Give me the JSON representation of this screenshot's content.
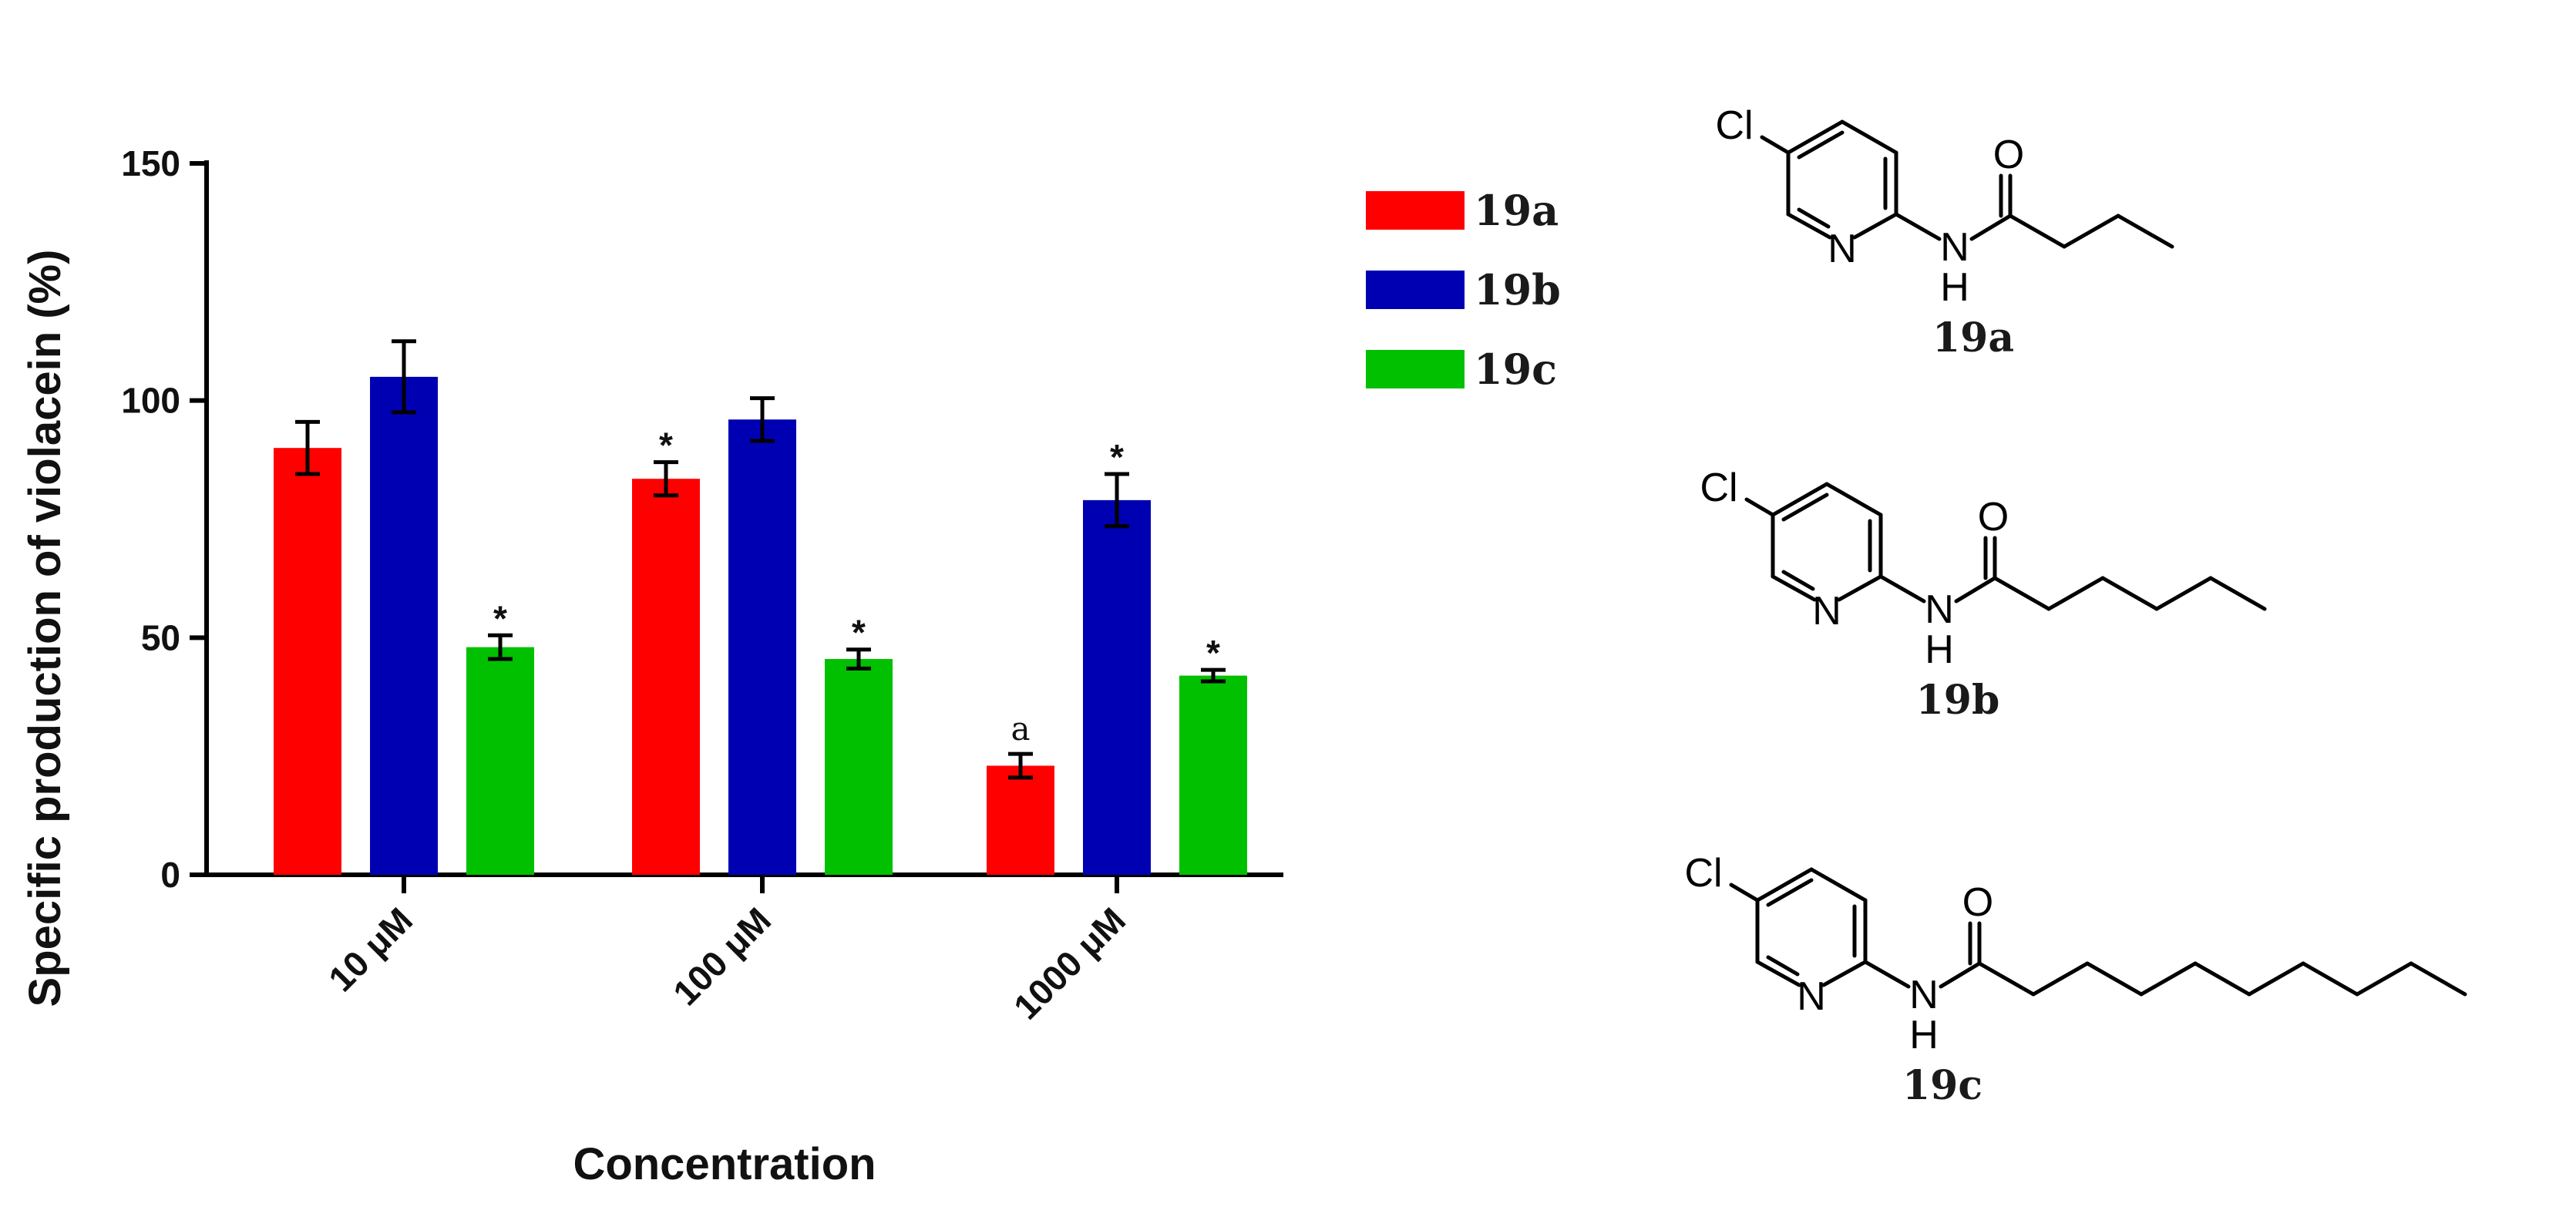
{
  "chart_data": {
    "type": "bar",
    "xlabel": "Concentration",
    "ylabel": "Specific production of violacein (%)",
    "ylim": [
      0,
      150
    ],
    "yticks": [
      0,
      50,
      100,
      150
    ],
    "categories": [
      "10 μM",
      "100 μM",
      "1000 μM"
    ],
    "series": [
      {
        "name": "19a",
        "color": "#ff0000",
        "values": [
          90,
          83.5,
          23
        ],
        "errors": [
          5.5,
          3.5,
          2.5
        ],
        "marks": [
          "",
          "*",
          "a"
        ]
      },
      {
        "name": "19b",
        "color": "#0000b3",
        "values": [
          105,
          96,
          79
        ],
        "errors": [
          7.5,
          4.5,
          5.5
        ],
        "marks": [
          "",
          "",
          "*"
        ]
      },
      {
        "name": "19c",
        "color": "#00c000",
        "values": [
          48,
          45.5,
          42
        ],
        "errors": [
          2.5,
          2,
          1.2
        ],
        "marks": [
          "*",
          "*",
          "*"
        ]
      }
    ],
    "legend": "top-right",
    "grid": false
  },
  "structures": {
    "atom_cl": "Cl",
    "atom_n": "N",
    "atom_h": "H",
    "atom_o": "O",
    "labels": [
      "19a",
      "19b",
      "19c"
    ]
  }
}
